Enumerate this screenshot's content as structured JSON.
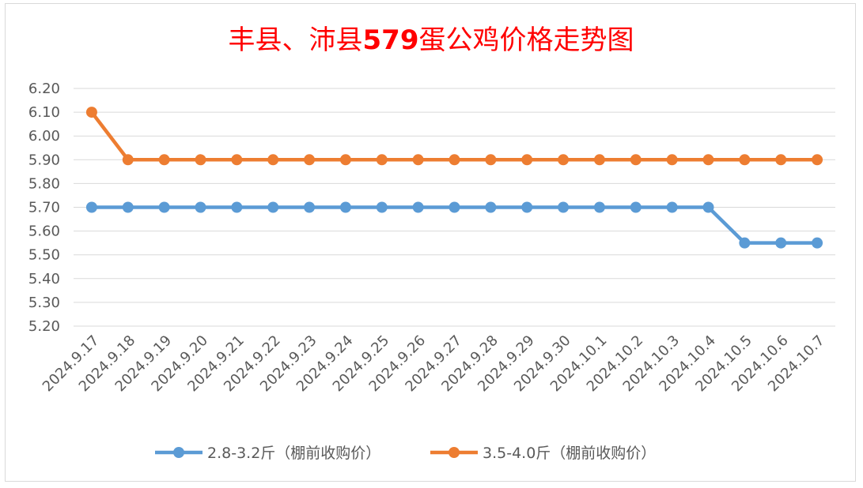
{
  "chart_data": {
    "type": "line",
    "title_pre": "丰县、沛县",
    "title_num": "579",
    "title_post": "蛋公鸡价格走势图",
    "categories": [
      "2024.9.17",
      "2024.9.18",
      "2024.9.19",
      "2024.9.20",
      "2024.9.21",
      "2024.9.22",
      "2024.9.23",
      "2024.9.24",
      "2024.9.25",
      "2024.9.26",
      "2024.9.27",
      "2024.9.28",
      "2024.9.29",
      "2024.9.30",
      "2024.10.1",
      "2024.10.2",
      "2024.10.3",
      "2024.10.4",
      "2024.10.5",
      "2024.10.6",
      "2024.10.7"
    ],
    "series": [
      {
        "name": "2.8-3.2斤（棚前收购价）",
        "color": "#5b9bd5",
        "values": [
          5.7,
          5.7,
          5.7,
          5.7,
          5.7,
          5.7,
          5.7,
          5.7,
          5.7,
          5.7,
          5.7,
          5.7,
          5.7,
          5.7,
          5.7,
          5.7,
          5.7,
          5.7,
          5.55,
          5.55,
          5.55
        ]
      },
      {
        "name": "3.5-4.0斤（棚前收购价）",
        "color": "#ed7d31",
        "values": [
          6.1,
          5.9,
          5.9,
          5.9,
          5.9,
          5.9,
          5.9,
          5.9,
          5.9,
          5.9,
          5.9,
          5.9,
          5.9,
          5.9,
          5.9,
          5.9,
          5.9,
          5.9,
          5.9,
          5.9,
          5.9
        ]
      }
    ],
    "yticks": [
      "6.20",
      "6.10",
      "6.00",
      "5.90",
      "5.80",
      "5.70",
      "5.60",
      "5.50",
      "5.40",
      "5.30",
      "5.20"
    ],
    "ylim": [
      5.2,
      6.2
    ],
    "grid": true,
    "legend_position": "bottom"
  }
}
